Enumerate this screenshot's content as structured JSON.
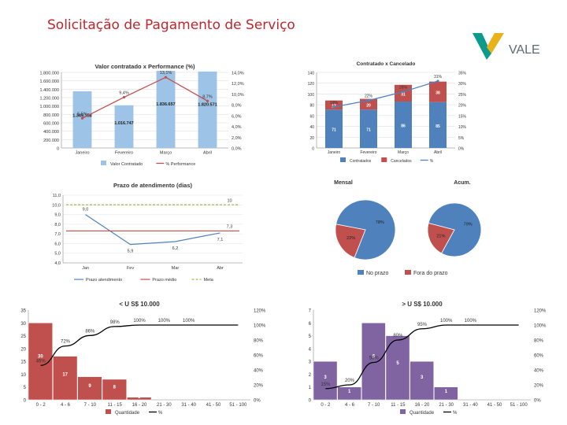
{
  "page": {
    "title": "Solicitação de Pagamento de Serviço",
    "logo_text": "VALE",
    "logo_colors": {
      "green": "#0c9a8c",
      "yellow": "#e8b21a",
      "text": "#5c6a72"
    }
  },
  "chart_data": [
    {
      "id": "c1",
      "type": "bar",
      "title": "Valor contratado x Performance (%)",
      "categories": [
        "Janeiro",
        "Fevereiro",
        "Março",
        "Abril"
      ],
      "series": [
        {
          "name": "Valor Contratado",
          "type": "bar",
          "color": "#9dc3e6",
          "values": [
            1349158,
            1016747,
            1836657,
            1820571
          ],
          "labels": [
            "1.349.158",
            "1.016.747",
            "1.836.657",
            "1.820.571"
          ]
        },
        {
          "name": "% Performance",
          "type": "line",
          "color": "#c0504d",
          "values": [
            5.5,
            9.4,
            13.1,
            8.7
          ],
          "labels": [
            "5,5%",
            "9,4%",
            "13,1%",
            "8,7%"
          ]
        }
      ],
      "ylim": [
        0,
        1800000
      ],
      "yticks": [
        "0",
        "200.000",
        "400.000",
        "600.000",
        "800.000",
        "1.000.000",
        "1.200.000",
        "1.400.000",
        "1.600.000",
        "1.800.000"
      ],
      "y2lim": [
        0,
        14
      ],
      "y2ticks": [
        "0,0%",
        "2,0%",
        "4,0%",
        "6,0%",
        "8,0%",
        "10,0%",
        "12,0%",
        "14,0%"
      ]
    },
    {
      "id": "c2",
      "type": "bar",
      "title": "Contratado x Cancelado",
      "categories": [
        "Janeiro",
        "Fevereiro",
        "Março",
        "Abril"
      ],
      "series": [
        {
          "name": "Contratados",
          "type": "bar",
          "color": "#4f81bd",
          "values": [
            71,
            71,
            86,
            85
          ]
        },
        {
          "name": "Cancelados",
          "type": "bar",
          "color": "#c0504d",
          "values": [
            17,
            20,
            31,
            38
          ]
        },
        {
          "name": "%",
          "type": "line",
          "color": "#4f81bd",
          "values": [
            19,
            22,
            26,
            31
          ],
          "labels": [
            "19%",
            "22%",
            "26%",
            "31%"
          ]
        }
      ],
      "ylim": [
        0,
        140
      ],
      "yticks": [
        "0",
        "20",
        "40",
        "60",
        "80",
        "100",
        "120",
        "140"
      ],
      "y2lim": [
        0,
        35
      ],
      "y2ticks": [
        "0%",
        "5%",
        "10%",
        "15%",
        "20%",
        "25%",
        "30%",
        "35%"
      ]
    },
    {
      "id": "c3",
      "type": "line",
      "title": "Prazo de atendimento (dias)",
      "categories": [
        "Jan",
        "Fev",
        "Mar",
        "Abr"
      ],
      "series": [
        {
          "name": "Prazo atendimento",
          "color": "#4f81bd",
          "values": [
            9.0,
            5.9,
            6.2,
            7.1
          ],
          "labels": [
            "9,0",
            "5,9",
            "6,2",
            "7,1"
          ]
        },
        {
          "name": "Prazo médio",
          "color": "#c0504d",
          "values": [
            7.3,
            7.3,
            7.3,
            7.3
          ],
          "labels": [
            "",
            "",
            "",
            "7,3"
          ]
        },
        {
          "name": "Meta",
          "color": "#9bbb59",
          "values": [
            10,
            10,
            10,
            10
          ],
          "labels": [
            "",
            "",
            "",
            "10"
          ]
        }
      ],
      "ylim": [
        4,
        11
      ],
      "yticks": [
        "4,0",
        "5,0",
        "6,0",
        "7,0",
        "8,0",
        "9,0",
        "10,0",
        "11,0"
      ]
    },
    {
      "id": "c4",
      "type": "pie",
      "charts": [
        {
          "title": "Mensal",
          "slices": [
            {
              "name": "No prazo",
              "value": 78,
              "label": "78%"
            },
            {
              "name": "Fora do prazo",
              "value": 22,
              "label": "22%"
            }
          ]
        },
        {
          "title": "Acum.",
          "slices": [
            {
              "name": "No prazo",
              "value": 79,
              "label": "79%"
            },
            {
              "name": "Fora do prazo",
              "value": 21,
              "label": "21%"
            }
          ]
        }
      ],
      "legend": [
        "No prazo",
        "Fora do prazo"
      ],
      "colors": [
        "#4f81bd",
        "#c0504d"
      ]
    },
    {
      "id": "c5",
      "type": "bar",
      "title": "< U S$ 10.000",
      "categories": [
        "0 - 2",
        "4 - 6",
        "7 - 10",
        "11 - 15",
        "16 - 20",
        "21 - 30",
        "31 - 40",
        "41 - 50",
        "51 - 100"
      ],
      "series": [
        {
          "name": "Quantidade",
          "type": "bar",
          "color": "#c0504d",
          "values": [
            30,
            17,
            9,
            8,
            1,
            0,
            0,
            0,
            0
          ],
          "labels": [
            "30",
            "17",
            "9",
            "8",
            "1",
            "",
            "",
            "",
            ""
          ]
        },
        {
          "name": "%",
          "type": "line",
          "color": "#000000",
          "values": [
            46,
            72,
            86,
            98,
            100,
            100,
            100,
            100,
            100
          ],
          "labels": [
            "46%",
            "72%",
            "86%",
            "98%",
            "100%",
            "100%",
            "100%",
            "",
            ""
          ]
        }
      ],
      "ylim": [
        0,
        35
      ],
      "yticks": [
        "0",
        "5",
        "10",
        "15",
        "20",
        "25",
        "30",
        "35"
      ],
      "y2lim": [
        0,
        120
      ],
      "y2ticks": [
        "0%",
        "20%",
        "40%",
        "60%",
        "80%",
        "100%",
        "120%"
      ]
    },
    {
      "id": "c6",
      "type": "bar",
      "title": "> U S$ 10.000",
      "categories": [
        "0 - 2",
        "4 - 6",
        "7 - 10",
        "11 - 15",
        "16 - 20",
        "21 - 30",
        "31 - 40",
        "41 - 50",
        "51 - 100"
      ],
      "series": [
        {
          "name": "Quantidade",
          "type": "bar",
          "color": "#8064a2",
          "values": [
            3,
            1,
            6,
            5,
            3,
            1,
            0,
            0,
            0
          ],
          "labels": [
            "3",
            "1",
            "6",
            "5",
            "3",
            "1",
            "",
            "",
            ""
          ]
        },
        {
          "name": "%",
          "type": "line",
          "color": "#000000",
          "values": [
            15,
            20,
            50,
            80,
            95,
            100,
            100,
            100,
            100
          ],
          "labels": [
            "15%",
            "20%",
            "50%",
            "80%",
            "95%",
            "100%",
            "100%",
            "",
            ""
          ]
        }
      ],
      "ylim": [
        0,
        7
      ],
      "yticks": [
        "0",
        "1",
        "2",
        "3",
        "4",
        "5",
        "6",
        "7"
      ],
      "y2lim": [
        0,
        120
      ],
      "y2ticks": [
        "0%",
        "20%",
        "40%",
        "60%",
        "80%",
        "100%",
        "120%"
      ]
    }
  ]
}
